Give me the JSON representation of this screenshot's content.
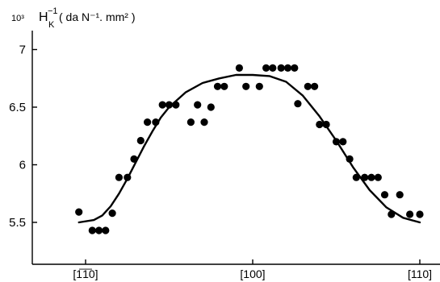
{
  "chart_data": {
    "type": "scatter",
    "title": "",
    "multiplier_label": "10³",
    "ylabel": {
      "symbol": "H",
      "superscript": "−1",
      "subscript": "K",
      "units": "( da N⁻¹. mm² )"
    },
    "xlabel": "",
    "x_tick_labels": [
      "[1̅1̅0]",
      "[100]",
      "[110]"
    ],
    "x_tick_positions": [
      0,
      1,
      2
    ],
    "xlim": [
      -0.2,
      2.15
    ],
    "y_tick_labels": [
      "5.5",
      "6",
      "6.5",
      "7"
    ],
    "y_ticks": [
      5.5,
      6.0,
      6.5,
      7.0
    ],
    "ylim": [
      5.15,
      7.25
    ],
    "grid": false,
    "series": [
      {
        "points": [
          [
            -0.04,
            5.59
          ],
          [
            0.04,
            5.43
          ],
          [
            0.08,
            5.43
          ],
          [
            0.12,
            5.43
          ],
          [
            0.16,
            5.58
          ],
          [
            0.2,
            5.89
          ],
          [
            0.25,
            5.89
          ],
          [
            0.29,
            6.05
          ],
          [
            0.33,
            6.21
          ],
          [
            0.37,
            6.37
          ],
          [
            0.42,
            6.37
          ],
          [
            0.46,
            6.52
          ],
          [
            0.5,
            6.52
          ],
          [
            0.54,
            6.52
          ],
          [
            0.63,
            6.37
          ],
          [
            0.67,
            6.52
          ],
          [
            0.71,
            6.37
          ],
          [
            0.75,
            6.5
          ],
          [
            0.79,
            6.68
          ],
          [
            0.83,
            6.68
          ],
          [
            0.92,
            6.84
          ],
          [
            0.96,
            6.68
          ],
          [
            1.04,
            6.68
          ],
          [
            1.08,
            6.84
          ],
          [
            1.12,
            6.84
          ],
          [
            1.17,
            6.84
          ],
          [
            1.21,
            6.84
          ],
          [
            1.25,
            6.84
          ],
          [
            1.27,
            6.53
          ],
          [
            1.33,
            6.68
          ],
          [
            1.37,
            6.68
          ],
          [
            1.4,
            6.35
          ],
          [
            1.44,
            6.35
          ],
          [
            1.5,
            6.2
          ],
          [
            1.54,
            6.2
          ],
          [
            1.58,
            6.05
          ],
          [
            1.62,
            5.89
          ],
          [
            1.67,
            5.89
          ],
          [
            1.71,
            5.89
          ],
          [
            1.75,
            5.89
          ],
          [
            1.79,
            5.74
          ],
          [
            1.83,
            5.57
          ],
          [
            1.88,
            5.74
          ],
          [
            1.94,
            5.57
          ],
          [
            2.0,
            5.57
          ]
        ]
      }
    ],
    "fit_curve": {
      "points": [
        [
          -0.04,
          5.5
        ],
        [
          0.05,
          5.52
        ],
        [
          0.1,
          5.56
        ],
        [
          0.15,
          5.64
        ],
        [
          0.2,
          5.75
        ],
        [
          0.25,
          5.88
        ],
        [
          0.3,
          6.02
        ],
        [
          0.35,
          6.16
        ],
        [
          0.4,
          6.29
        ],
        [
          0.45,
          6.41
        ],
        [
          0.5,
          6.5
        ],
        [
          0.6,
          6.63
        ],
        [
          0.7,
          6.71
        ],
        [
          0.8,
          6.75
        ],
        [
          0.9,
          6.78
        ],
        [
          1.0,
          6.78
        ],
        [
          1.1,
          6.77
        ],
        [
          1.2,
          6.72
        ],
        [
          1.3,
          6.6
        ],
        [
          1.4,
          6.42
        ],
        [
          1.5,
          6.21
        ],
        [
          1.6,
          5.98
        ],
        [
          1.7,
          5.78
        ],
        [
          1.8,
          5.63
        ],
        [
          1.9,
          5.54
        ],
        [
          2.0,
          5.5
        ]
      ]
    }
  }
}
